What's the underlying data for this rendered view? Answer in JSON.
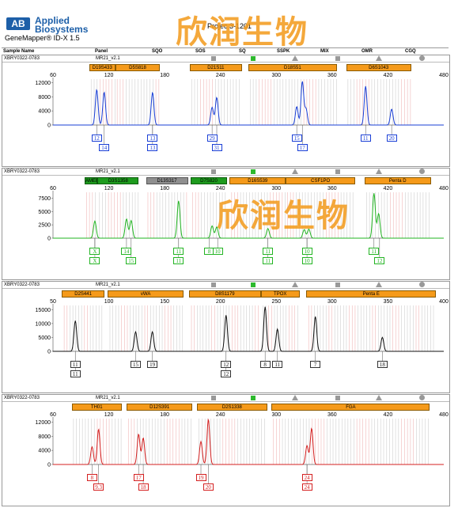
{
  "header": {
    "brand_line1": "Applied",
    "brand_line2": "Biosystems",
    "logo_text": "AB",
    "product": "GeneMapper® ID-X  1.5",
    "project": "Projec    3-1201",
    "watermark": "欣润生物"
  },
  "columns": [
    "Sample Name",
    "Panel",
    "SQO",
    "SOS",
    "SQ",
    "SSPK",
    "MIX",
    "OMR",
    "CGQ"
  ],
  "colors": {
    "blue": "#1a3fd6",
    "green": "#22b422",
    "black": "#111111",
    "red": "#d42020",
    "bin_orange": "#f59a1a",
    "bin_green": "#1e9b1e",
    "bin_gray": "#8f8f8f"
  },
  "chart_data": [
    {
      "type": "line",
      "sample": "XBRY0322-0783",
      "panel": "MR21_v2.1",
      "dye": "blue",
      "xlim": [
        60,
        480
      ],
      "xticks": [
        60,
        120,
        180,
        240,
        300,
        360,
        420,
        480
      ],
      "ylim": [
        0,
        13000
      ],
      "yticks": [
        0,
        4000,
        8000,
        12000
      ],
      "markers": [
        {
          "name": "D19S433",
          "start": 99,
          "end": 127,
          "color": "orange"
        },
        {
          "name": "D5S818",
          "start": 127,
          "end": 175,
          "color": "orange"
        },
        {
          "name": "D21S11",
          "start": 207,
          "end": 263,
          "color": "orange"
        },
        {
          "name": "D18S51",
          "start": 270,
          "end": 365,
          "color": "orange"
        },
        {
          "name": "D6S1043",
          "start": 375,
          "end": 445,
          "color": "orange"
        }
      ],
      "peaks": [
        {
          "x": 107,
          "h": 10000
        },
        {
          "x": 115,
          "h": 9300
        },
        {
          "x": 167,
          "h": 9200
        },
        {
          "x": 231,
          "h": 5000
        },
        {
          "x": 236,
          "h": 7800
        },
        {
          "x": 322,
          "h": 5200
        },
        {
          "x": 328,
          "h": 12300
        },
        {
          "x": 332,
          "h": 4500
        },
        {
          "x": 396,
          "h": 11000
        },
        {
          "x": 424,
          "h": 4500
        }
      ],
      "alleles": [
        {
          "x": 107,
          "row": 0,
          "label": "12"
        },
        {
          "x": 115,
          "row": 1,
          "label": "14"
        },
        {
          "x": 167,
          "row": 0,
          "label": "13"
        },
        {
          "x": 167,
          "row": 1,
          "label": "13"
        },
        {
          "x": 231,
          "row": 0,
          "label": "29"
        },
        {
          "x": 236,
          "row": 1,
          "label": "31"
        },
        {
          "x": 322,
          "row": 0,
          "label": "15"
        },
        {
          "x": 328,
          "row": 1,
          "label": "17"
        },
        {
          "x": 396,
          "row": 0,
          "label": "11"
        },
        {
          "x": 424,
          "row": 0,
          "label": "20"
        }
      ]
    },
    {
      "type": "line",
      "sample": "XBRY0322-0783",
      "panel": "MR21_v2.1",
      "dye": "green",
      "xlim": [
        60,
        480
      ],
      "xticks": [
        60,
        120,
        180,
        240,
        300,
        360,
        420,
        480
      ],
      "ylim": [
        0,
        8600
      ],
      "yticks": [
        0,
        2500,
        5000,
        7500
      ],
      "markers": [
        {
          "name": "AMEL",
          "start": 94,
          "end": 108,
          "color": "green"
        },
        {
          "name": "D3S1358",
          "start": 108,
          "end": 152,
          "color": "green"
        },
        {
          "name": "D13S317",
          "start": 160,
          "end": 205,
          "color": "gray"
        },
        {
          "name": "D7S820",
          "start": 208,
          "end": 247,
          "color": "green"
        },
        {
          "name": "D16S539",
          "start": 250,
          "end": 310,
          "color": "orange"
        },
        {
          "name": "CSF1PO",
          "start": 310,
          "end": 385,
          "color": "orange"
        },
        {
          "name": "Penta D",
          "start": 395,
          "end": 466,
          "color": "orange"
        }
      ],
      "peaks": [
        {
          "x": 105,
          "h": 3200
        },
        {
          "x": 139,
          "h": 3600
        },
        {
          "x": 144,
          "h": 3300
        },
        {
          "x": 195,
          "h": 7000
        },
        {
          "x": 231,
          "h": 2300
        },
        {
          "x": 236,
          "h": 2100
        },
        {
          "x": 291,
          "h": 1800
        },
        {
          "x": 330,
          "h": 1600
        },
        {
          "x": 335,
          "h": 1700
        },
        {
          "x": 405,
          "h": 8400
        },
        {
          "x": 410,
          "h": 4600
        }
      ],
      "alleles": [
        {
          "x": 105,
          "row": 0,
          "label": "X"
        },
        {
          "x": 105,
          "row": 1,
          "label": "X"
        },
        {
          "x": 139,
          "row": 0,
          "label": "14"
        },
        {
          "x": 144,
          "row": 1,
          "label": "15"
        },
        {
          "x": 195,
          "row": 0,
          "label": "11"
        },
        {
          "x": 195,
          "row": 1,
          "label": "11"
        },
        {
          "x": 228,
          "row": 0,
          "label": "8"
        },
        {
          "x": 237,
          "row": 0,
          "label": "10"
        },
        {
          "x": 291,
          "row": 0,
          "label": "11"
        },
        {
          "x": 291,
          "row": 1,
          "label": "11"
        },
        {
          "x": 333,
          "row": 0,
          "label": "10"
        },
        {
          "x": 333,
          "row": 1,
          "label": "10"
        },
        {
          "x": 405,
          "row": 0,
          "label": "11"
        },
        {
          "x": 411,
          "row": 1,
          "label": "12"
        }
      ]
    },
    {
      "type": "line",
      "sample": "XBRY0322-0783",
      "panel": "MR21_v2.1",
      "dye": "black",
      "xlim": [
        50,
        400
      ],
      "xticks": [
        50,
        100,
        150,
        200,
        250,
        300,
        350,
        400
      ],
      "ylim": [
        0,
        16500
      ],
      "yticks": [
        0,
        5000,
        10000,
        15000
      ],
      "markers": [
        {
          "name": "D2S441",
          "start": 58,
          "end": 96,
          "color": "orange"
        },
        {
          "name": "vWA",
          "start": 99,
          "end": 167,
          "color": "orange"
        },
        {
          "name": "D8S1179",
          "start": 172,
          "end": 236,
          "color": "orange"
        },
        {
          "name": "TPOX",
          "start": 236,
          "end": 271,
          "color": "orange"
        },
        {
          "name": "Penta E",
          "start": 277,
          "end": 393,
          "color": "orange"
        }
      ],
      "peaks": [
        {
          "x": 70,
          "h": 11000
        },
        {
          "x": 124,
          "h": 7000
        },
        {
          "x": 139,
          "h": 7000
        },
        {
          "x": 205,
          "h": 13000
        },
        {
          "x": 240,
          "h": 16000
        },
        {
          "x": 251,
          "h": 8000
        },
        {
          "x": 285,
          "h": 12500
        },
        {
          "x": 345,
          "h": 5000
        }
      ],
      "alleles": [
        {
          "x": 70,
          "row": 0,
          "label": "11"
        },
        {
          "x": 70,
          "row": 1,
          "label": "11"
        },
        {
          "x": 124,
          "row": 0,
          "label": "15"
        },
        {
          "x": 139,
          "row": 0,
          "label": "19"
        },
        {
          "x": 205,
          "row": 0,
          "label": "12"
        },
        {
          "x": 205,
          "row": 1,
          "label": "12"
        },
        {
          "x": 240,
          "row": 0,
          "label": "8"
        },
        {
          "x": 251,
          "row": 0,
          "label": "11"
        },
        {
          "x": 285,
          "row": 0,
          "label": "7"
        },
        {
          "x": 345,
          "row": 0,
          "label": "18"
        }
      ]
    },
    {
      "type": "line",
      "sample": "XBRY0322-0783",
      "panel": "MR21_v2.1",
      "dye": "red",
      "xlim": [
        60,
        480
      ],
      "xticks": [
        60,
        120,
        180,
        240,
        300,
        360,
        420,
        480
      ],
      "ylim": [
        0,
        13000
      ],
      "yticks": [
        0,
        4000,
        8000,
        12000
      ],
      "markers": [
        {
          "name": "TH01",
          "start": 80,
          "end": 134,
          "color": "orange"
        },
        {
          "name": "D12S391",
          "start": 139,
          "end": 210,
          "color": "orange"
        },
        {
          "name": "D2S1338",
          "start": 215,
          "end": 290,
          "color": "orange"
        },
        {
          "name": "FGA",
          "start": 295,
          "end": 465,
          "color": "orange"
        }
      ],
      "peaks": [
        {
          "x": 102,
          "h": 5000
        },
        {
          "x": 109,
          "h": 10000
        },
        {
          "x": 152,
          "h": 8600
        },
        {
          "x": 157,
          "h": 7500
        },
        {
          "x": 219,
          "h": 6500
        },
        {
          "x": 227,
          "h": 12800
        },
        {
          "x": 333,
          "h": 5300
        },
        {
          "x": 338,
          "h": 10200
        }
      ],
      "alleles": [
        {
          "x": 102,
          "row": 0,
          "label": "8"
        },
        {
          "x": 109,
          "row": 1,
          "label": "9.3"
        },
        {
          "x": 152,
          "row": 0,
          "label": "17"
        },
        {
          "x": 157,
          "row": 1,
          "label": "18"
        },
        {
          "x": 219,
          "row": 0,
          "label": "19"
        },
        {
          "x": 227,
          "row": 1,
          "label": "20"
        },
        {
          "x": 333,
          "row": 0,
          "label": "24"
        },
        {
          "x": 333,
          "row": 1,
          "label": "24"
        }
      ]
    }
  ]
}
